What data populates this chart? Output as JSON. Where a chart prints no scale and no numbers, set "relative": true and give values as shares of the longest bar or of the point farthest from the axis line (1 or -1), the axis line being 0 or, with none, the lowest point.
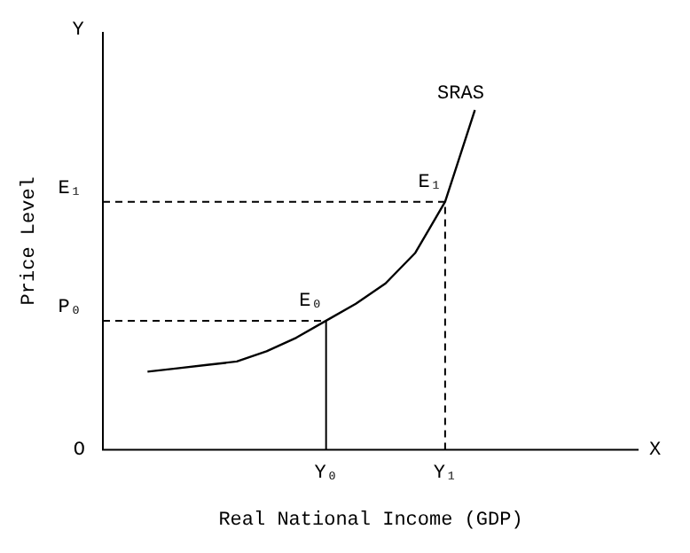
{
  "chart_data": {
    "type": "line",
    "relative": true,
    "xlabel": "Real National Income (GDP)",
    "ylabel": "Price Level",
    "tick_labels": "x",
    "marker": "none",
    "line_style": "solid",
    "categories": [
      null,
      null,
      null,
      null,
      null,
      null,
      null,
      "Y₀",
      null,
      null,
      null,
      "Y₁",
      null,
      null,
      null,
      null,
      null,
      null
    ],
    "series": [
      {
        "name": "SRAS",
        "color": "#000000",
        "values": [
          null,
          0.23,
          0.24,
          0.25,
          0.26,
          0.29,
          0.33,
          0.38,
          0.43,
          0.49,
          0.58,
          0.73,
          1,
          null,
          null,
          null,
          null,
          null
        ]
      }
    ],
    "ref_lines": [
      {
        "axis": "y",
        "value": 0.38,
        "label": "P₀",
        "line_style": "dashed",
        "color": "#000000"
      },
      {
        "axis": "y",
        "value": 0.73,
        "label": "E₁",
        "line_style": "dashed",
        "color": "#000000"
      },
      {
        "axis": "x",
        "value": "Y₀",
        "line_style": "solid",
        "color": "#000000"
      },
      {
        "axis": "x",
        "value": "Y₁",
        "line_style": "dashed",
        "color": "#000000"
      }
    ],
    "annotations": [
      "Y",
      "X",
      "O",
      {
        "text": "E₀",
        "x": "Y₀",
        "y": 0.38
      },
      {
        "text": "E₁",
        "x": "Y₁",
        "y": 0.73
      }
    ]
  }
}
